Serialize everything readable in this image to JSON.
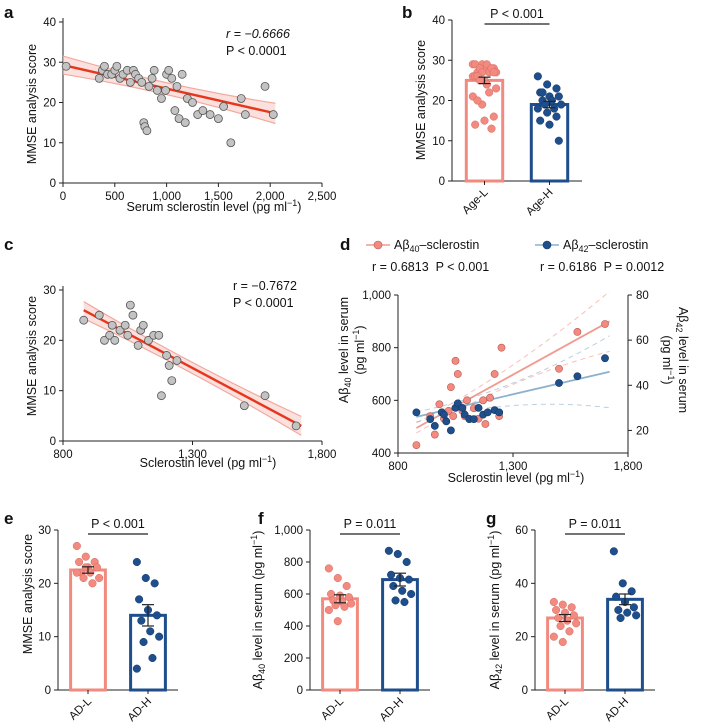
{
  "colors": {
    "age_l": "#f28a80",
    "age_h": "#1f4e8c",
    "regression": "#e8361c",
    "ci_band": "#f6c8c2",
    "point_gray": "#c3c3c3",
    "ab40_line": "#f29a8e",
    "ab42_line": "#8cb1cc"
  },
  "panels": {
    "a": "a",
    "b": "b",
    "c": "c",
    "d": "d",
    "e": "e",
    "f": "f",
    "g": "g"
  },
  "chart_data": [
    {
      "id": "a",
      "type": "scatter",
      "xlabel": "Serum sclerostin level (pg ml",
      "xlabel_sup": "−1",
      "xlabel_end": ")",
      "ylabel": "MMSE analysis score",
      "xlim": [
        0,
        2500
      ],
      "ylim": [
        0,
        40
      ],
      "xticks": [
        0,
        500,
        1000,
        1500,
        2000,
        2500
      ],
      "xtick_labels": [
        "0",
        "500",
        "1,000",
        "1,500",
        "2,000",
        "2,500"
      ],
      "yticks": [
        0,
        10,
        20,
        30,
        40
      ],
      "ytick_labels": [
        "0",
        "10",
        "20",
        "30",
        "40"
      ],
      "annotation_r": "r = −0.6666",
      "annotation_p": "P < 0.0001",
      "fit": {
        "x": [
          0,
          2050
        ],
        "y": [
          29.3,
          17.3
        ]
      },
      "points": [
        [
          30,
          29
        ],
        [
          350,
          26
        ],
        [
          380,
          28
        ],
        [
          400,
          29
        ],
        [
          430,
          27
        ],
        [
          470,
          27
        ],
        [
          500,
          28
        ],
        [
          520,
          29
        ],
        [
          550,
          26
        ],
        [
          580,
          27
        ],
        [
          620,
          28
        ],
        [
          650,
          25
        ],
        [
          680,
          28
        ],
        [
          700,
          27
        ],
        [
          730,
          26
        ],
        [
          760,
          25
        ],
        [
          780,
          15
        ],
        [
          790,
          14
        ],
        [
          810,
          13
        ],
        [
          830,
          24
        ],
        [
          860,
          26
        ],
        [
          880,
          28
        ],
        [
          910,
          23
        ],
        [
          950,
          21
        ],
        [
          990,
          23
        ],
        [
          1000,
          27
        ],
        [
          1020,
          28
        ],
        [
          1050,
          26
        ],
        [
          1080,
          18
        ],
        [
          1100,
          24
        ],
        [
          1120,
          16
        ],
        [
          1150,
          27
        ],
        [
          1180,
          15
        ],
        [
          1200,
          21
        ],
        [
          1250,
          20
        ],
        [
          1300,
          17
        ],
        [
          1350,
          18
        ],
        [
          1420,
          17
        ],
        [
          1500,
          16
        ],
        [
          1550,
          19
        ],
        [
          1620,
          10
        ],
        [
          1720,
          21
        ],
        [
          1760,
          17
        ],
        [
          1950,
          24
        ],
        [
          2030,
          17
        ]
      ]
    },
    {
      "id": "b",
      "type": "bar",
      "ylabel": "MMSE analysis score",
      "ylim": [
        0,
        40
      ],
      "yticks": [
        0,
        10,
        20,
        30,
        40
      ],
      "ytick_labels": [
        "0",
        "10",
        "20",
        "30",
        "40"
      ],
      "categories": [
        "Age-L",
        "Age-H"
      ],
      "values": [
        25,
        19
      ],
      "sem": [
        0.8,
        0.8
      ],
      "sig_label": "P < 0.001",
      "points": [
        [
          29,
          29,
          28,
          29,
          28,
          28,
          27,
          29,
          27,
          28,
          27,
          26,
          27,
          28,
          26,
          25,
          27,
          26,
          24,
          23,
          25,
          22,
          21,
          19,
          13,
          14,
          15,
          16,
          20,
          24
        ],
        [
          26,
          24,
          23,
          22,
          21,
          21,
          20,
          20,
          19,
          19,
          18,
          18,
          17,
          16,
          15,
          14,
          10,
          22,
          20
        ]
      ]
    },
    {
      "id": "c",
      "type": "scatter",
      "xlabel": "Sclerostin level (pg ml",
      "xlabel_sup": "−1",
      "xlabel_end": ")",
      "ylabel": "MMSE analysis score",
      "xlim": [
        800,
        1800
      ],
      "ylim": [
        0,
        30
      ],
      "xticks": [
        800,
        1300,
        1800
      ],
      "xtick_labels": [
        "800",
        "1,300",
        "1,800"
      ],
      "yticks": [
        0,
        10,
        20,
        30
      ],
      "ytick_labels": [
        "0",
        "10",
        "20",
        "30"
      ],
      "annotation_r": "r = −0.7672",
      "annotation_p": "P < 0.0001",
      "fit": {
        "x": [
          880,
          1720
        ],
        "y": [
          26,
          3
        ]
      },
      "points": [
        [
          880,
          24
        ],
        [
          940,
          25
        ],
        [
          960,
          20
        ],
        [
          980,
          21
        ],
        [
          990,
          23
        ],
        [
          1000,
          20
        ],
        [
          1020,
          22
        ],
        [
          1040,
          23
        ],
        [
          1050,
          21
        ],
        [
          1060,
          27
        ],
        [
          1070,
          25
        ],
        [
          1090,
          19
        ],
        [
          1100,
          22
        ],
        [
          1110,
          23
        ],
        [
          1130,
          20
        ],
        [
          1150,
          21
        ],
        [
          1170,
          21
        ],
        [
          1180,
          9
        ],
        [
          1200,
          17
        ],
        [
          1210,
          15
        ],
        [
          1220,
          12
        ],
        [
          1240,
          16
        ],
        [
          1500,
          7
        ],
        [
          1580,
          9
        ],
        [
          1700,
          3
        ]
      ]
    },
    {
      "id": "d",
      "type": "scatter",
      "xlabel": "Sclerostin level (pg ml",
      "xlabel_sup": "−1",
      "xlabel_end": ")",
      "xlim": [
        800,
        1800
      ],
      "xticks": [
        800,
        1300,
        1800
      ],
      "xtick_labels": [
        "800",
        "1,300",
        "1,800"
      ],
      "ylim_left": [
        400,
        1000
      ],
      "yticks_left": [
        400,
        600,
        800,
        1000
      ],
      "ytick_labels_left": [
        "400",
        "600",
        "800",
        "1,000"
      ],
      "ylim_right": [
        10,
        80
      ],
      "yticks_right": [
        20,
        40,
        60,
        80
      ],
      "ytick_labels_right": [
        "20",
        "40",
        "60",
        "80"
      ],
      "ylabel_left_a": "Aβ",
      "ylabel_left_sub": "40",
      "ylabel_left_b": " level in serum",
      "ylabel_left_c": "(pg ml",
      "ylabel_left_sup": "−1",
      "ylabel_left_d": ")",
      "ylabel_right_a": "Aβ",
      "ylabel_right_sub": "42",
      "ylabel_right_b": " level in serum",
      "ylabel_right_c": "(pg ml",
      "ylabel_right_sup": "−1",
      "ylabel_right_d": ")",
      "legend_ab40_a": "Aβ",
      "legend_ab40_sub": "40",
      "legend_ab40_b": "–sclerostin",
      "legend_ab42_a": "Aβ",
      "legend_ab42_sub": "42",
      "legend_ab42_b": "–sclerostin",
      "stat_ab40": "r = 0.6813  P < 0.001",
      "stat_ab42": "r = 0.6186  P = 0.0012",
      "series": [
        {
          "name": "Aβ40–sclerostin",
          "axis": "left",
          "fit": {
            "x": [
              880,
              1720
            ],
            "y": [
              495,
              900
            ]
          },
          "points": [
            [
              880,
              430
            ],
            [
              940,
              540
            ],
            [
              960,
              470
            ],
            [
              980,
              585
            ],
            [
              1000,
              530
            ],
            [
              1020,
              560
            ],
            [
              1030,
              650
            ],
            [
              1040,
              540
            ],
            [
              1050,
              750
            ],
            [
              1060,
              700
            ],
            [
              1080,
              560
            ],
            [
              1090,
              540
            ],
            [
              1100,
              600
            ],
            [
              1110,
              530
            ],
            [
              1130,
              570
            ],
            [
              1150,
              530
            ],
            [
              1170,
              600
            ],
            [
              1180,
              510
            ],
            [
              1200,
              610
            ],
            [
              1220,
              700
            ],
            [
              1240,
              540
            ],
            [
              1250,
              800
            ],
            [
              1500,
              720
            ],
            [
              1580,
              860
            ],
            [
              1700,
              890
            ]
          ]
        },
        {
          "name": "Aβ42–sclerostin",
          "axis": "right",
          "fit": {
            "x": [
              880,
              1720
            ],
            "y": [
              26,
              46
            ]
          },
          "points": [
            [
              880,
              28
            ],
            [
              940,
              25
            ],
            [
              960,
              22
            ],
            [
              990,
              28
            ],
            [
              1000,
              27
            ],
            [
              1010,
              24
            ],
            [
              1030,
              20
            ],
            [
              1050,
              30
            ],
            [
              1060,
              32
            ],
            [
              1080,
              30
            ],
            [
              1090,
              27
            ],
            [
              1110,
              25
            ],
            [
              1130,
              25
            ],
            [
              1150,
              30
            ],
            [
              1170,
              27
            ],
            [
              1190,
              28
            ],
            [
              1220,
              29
            ],
            [
              1240,
              28
            ],
            [
              1500,
              41
            ],
            [
              1580,
              44
            ],
            [
              1700,
              52
            ]
          ]
        }
      ]
    },
    {
      "id": "e",
      "type": "bar",
      "ylabel": "MMSE analysis score",
      "ylim": [
        0,
        30
      ],
      "yticks": [
        0,
        10,
        20,
        30
      ],
      "ytick_labels": [
        "0",
        "10",
        "20",
        "30"
      ],
      "categories": [
        "AD-L",
        "AD-H"
      ],
      "values": [
        22.5,
        14
      ],
      "sem": [
        0.6,
        2
      ],
      "sig_label": "P < 0.001",
      "points": [
        [
          27,
          25,
          24,
          24,
          23,
          23,
          22,
          22,
          21,
          21,
          20,
          22,
          23
        ],
        [
          24,
          21,
          20,
          17,
          15,
          14,
          13,
          11,
          10,
          9,
          6,
          4
        ]
      ]
    },
    {
      "id": "f",
      "type": "bar",
      "ylabel_a": "Aβ",
      "ylabel_sub": "40",
      "ylabel_b": " level in serum (pg ml",
      "ylabel_sup": "−1",
      "ylabel_c": ")",
      "ylim": [
        0,
        1000
      ],
      "yticks": [
        0,
        200,
        400,
        600,
        800,
        1000
      ],
      "ytick_labels": [
        "0",
        "200",
        "400",
        "600",
        "800",
        "1,000"
      ],
      "categories": [
        "AD-L",
        "AD-H"
      ],
      "values": [
        570,
        690
      ],
      "sem": [
        25,
        40
      ],
      "sig_label": "P = 0.011",
      "points": [
        [
          760,
          700,
          650,
          600,
          590,
          580,
          560,
          550,
          540,
          530,
          520,
          500,
          430
        ],
        [
          870,
          850,
          800,
          720,
          700,
          690,
          650,
          620,
          600,
          560,
          550
        ]
      ]
    },
    {
      "id": "g",
      "type": "bar",
      "ylabel_a": "Aβ",
      "ylabel_sub": "42",
      "ylabel_b": " level in serum (pg ml",
      "ylabel_sup": "−1",
      "ylabel_c": ")",
      "ylim": [
        0,
        60
      ],
      "yticks": [
        0,
        20,
        40,
        60
      ],
      "ytick_labels": [
        "0",
        "20",
        "40",
        "60"
      ],
      "categories": [
        "AD-L",
        "AD-H"
      ],
      "values": [
        27,
        34
      ],
      "sem": [
        1.3,
        2
      ],
      "sig_label": "P = 0.011",
      "points": [
        [
          33,
          32,
          31,
          30,
          29,
          28,
          27,
          26,
          25,
          24,
          22,
          20,
          18
        ],
        [
          52,
          40,
          37,
          35,
          33,
          31,
          30,
          29,
          28,
          27
        ]
      ]
    }
  ]
}
